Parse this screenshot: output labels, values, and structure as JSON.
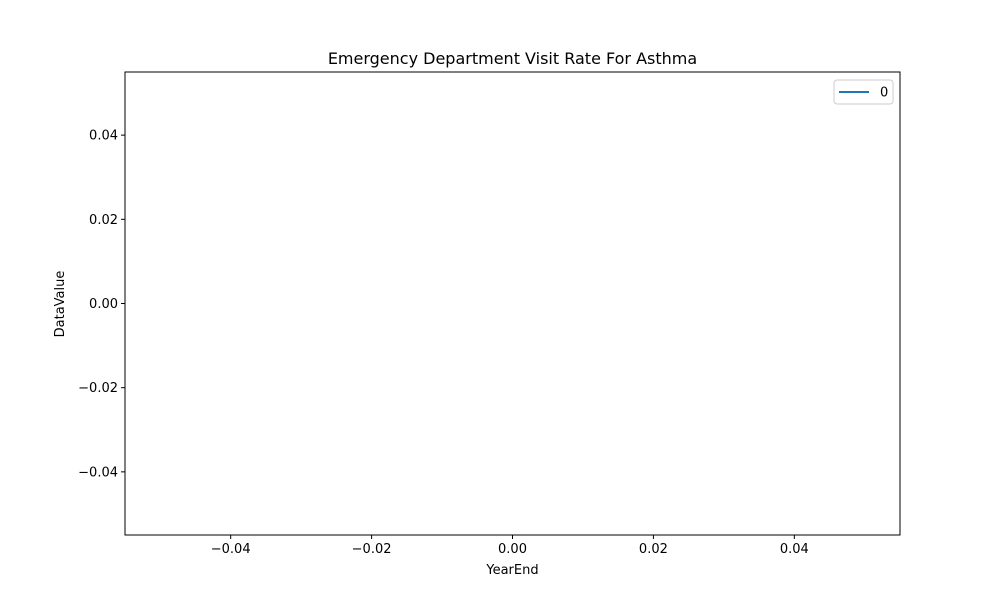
{
  "chart_data": {
    "type": "line",
    "title": "Emergency Department Visit Rate For Asthma",
    "xlabel": "YearEnd",
    "ylabel": "DataValue",
    "xlim": [
      -0.055,
      0.055
    ],
    "ylim": [
      -0.055,
      0.055
    ],
    "x_ticks": [
      -0.04,
      -0.02,
      0.0,
      0.02,
      0.04
    ],
    "x_tick_labels": [
      "−0.04",
      "−0.02",
      "0.00",
      "0.02",
      "0.04"
    ],
    "y_ticks": [
      0.04,
      0.02,
      0.0,
      -0.02,
      -0.04
    ],
    "y_tick_labels": [
      "0.04",
      "0.02",
      "0.00",
      "−0.02",
      "−0.04"
    ],
    "grid": false,
    "legend_position": "top-right",
    "series": [
      {
        "name": "0",
        "x": [],
        "y": [],
        "color": "#1f77b4"
      }
    ]
  }
}
